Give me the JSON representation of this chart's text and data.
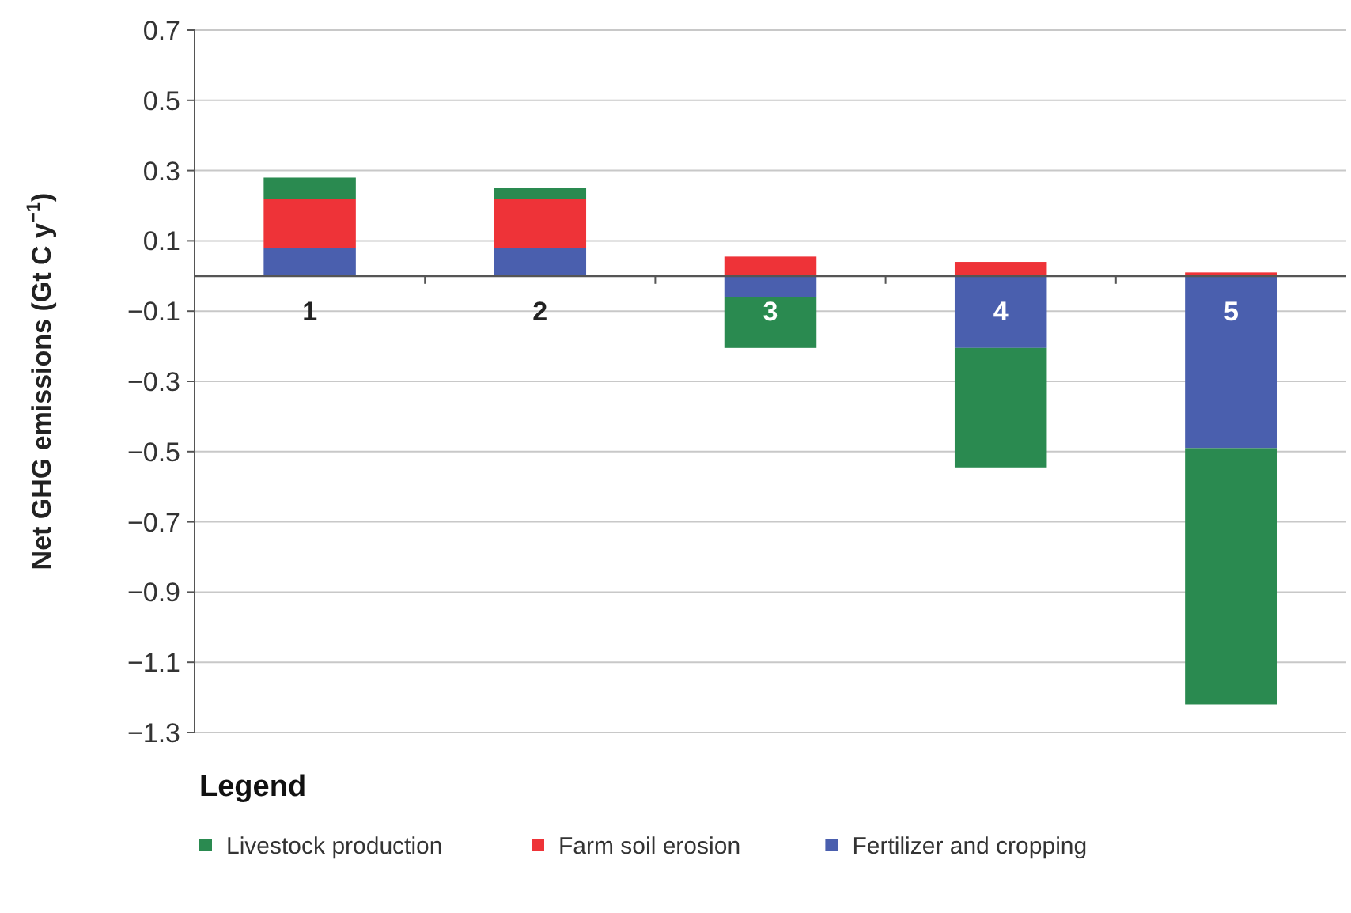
{
  "chart_data": {
    "type": "bar",
    "stacked": true,
    "ylabel": "Net GHG emissions (Gt C y$^{−1}$)",
    "legend_title": "Legend",
    "legend": "bottom left",
    "grid": "y",
    "categories": [
      "1",
      "2",
      "3",
      "4",
      "5"
    ],
    "series": [
      {
        "name": "Fertilizer and cropping",
        "color": "#4a5fae",
        "values": [
          0.08,
          0.08,
          -0.06,
          -0.205,
          -0.49
        ]
      },
      {
        "name": "Farm soil erosion",
        "color": "#ee3338",
        "values": [
          0.14,
          0.14,
          0.055,
          0.04,
          0.01
        ]
      },
      {
        "name": "Livestock production",
        "color": "#2a8a50",
        "values": [
          0.06,
          0.03,
          -0.145,
          -0.34,
          -0.73
        ]
      }
    ],
    "ylim": [
      -1.3,
      0.7
    ],
    "yticks": [
      0.7,
      0.5,
      0.3,
      0.1,
      -0.1,
      -0.3,
      -0.5,
      -0.7,
      -0.9,
      -1.1,
      -1.3
    ]
  }
}
